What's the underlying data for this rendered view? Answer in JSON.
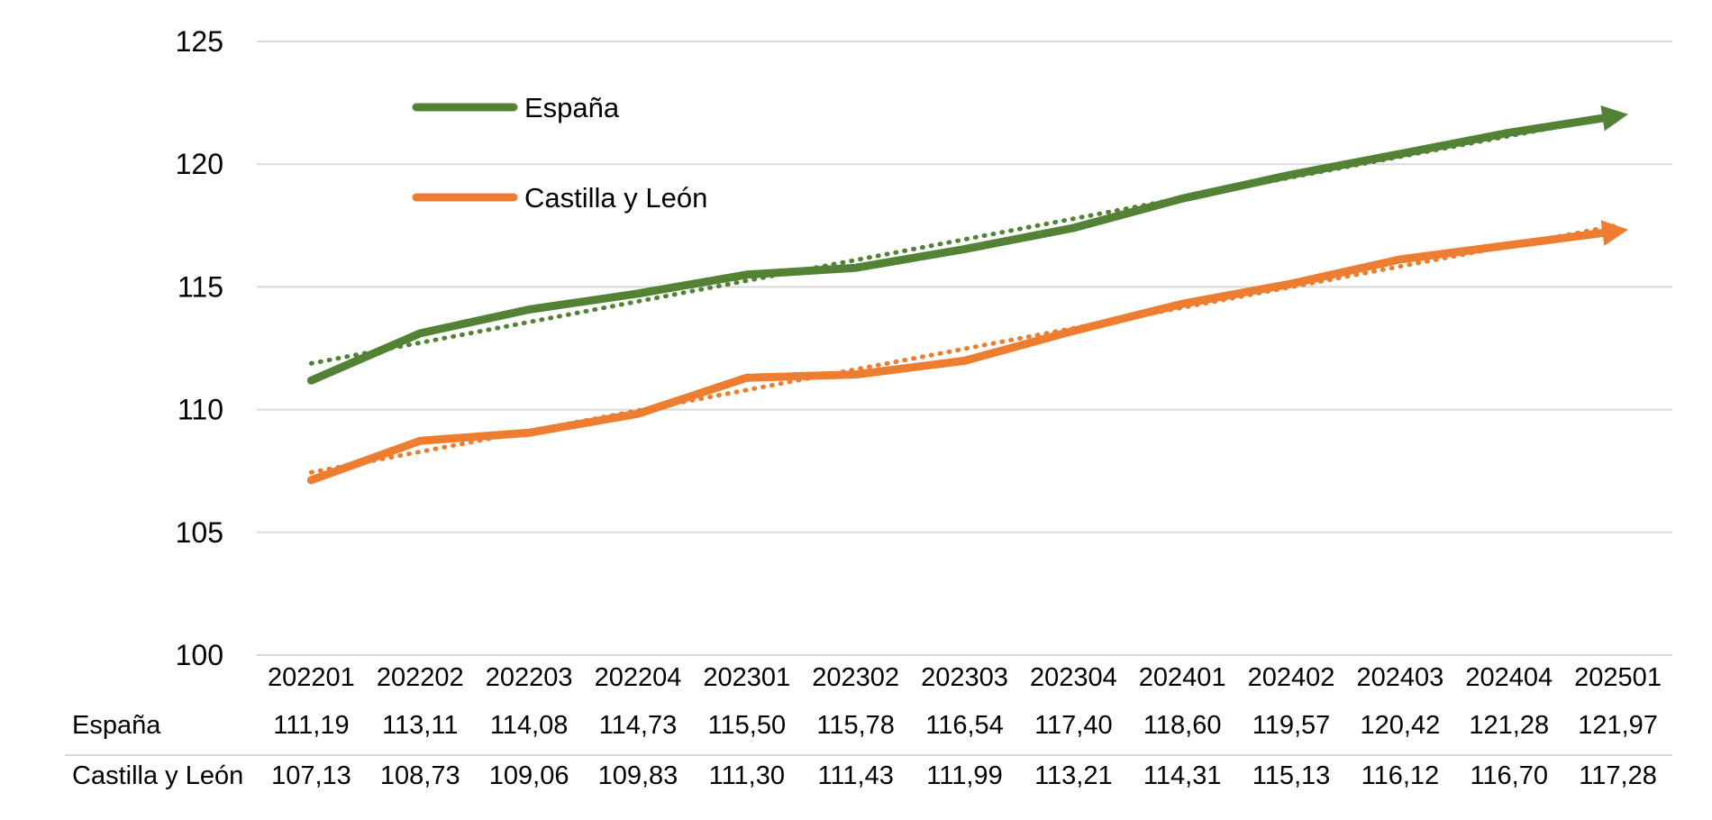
{
  "chart_data": {
    "type": "line",
    "categories": [
      "202201",
      "202202",
      "202203",
      "202204",
      "202301",
      "202302",
      "202303",
      "202304",
      "202401",
      "202402",
      "202403",
      "202404",
      "202501"
    ],
    "series": [
      {
        "name": "España",
        "color": "#548235",
        "values": [
          111.19,
          113.11,
          114.08,
          114.73,
          115.5,
          115.78,
          116.54,
          117.4,
          118.6,
          119.57,
          120.42,
          121.28,
          121.97
        ],
        "labels": [
          "111,19",
          "113,11",
          "114,08",
          "114,73",
          "115,50",
          "115,78",
          "116,54",
          "117,40",
          "118,60",
          "119,57",
          "120,42",
          "121,28",
          "121,97"
        ],
        "trendline": "linear"
      },
      {
        "name": "Castilla y León",
        "color": "#ED7D31",
        "values": [
          107.13,
          108.73,
          109.06,
          109.83,
          111.3,
          111.43,
          111.99,
          113.21,
          114.31,
          115.13,
          116.12,
          116.7,
          117.28
        ],
        "labels": [
          "107,13",
          "108,73",
          "109,06",
          "109,83",
          "111,30",
          "111,43",
          "111,99",
          "113,21",
          "114,31",
          "115,13",
          "116,12",
          "116,70",
          "117,28"
        ],
        "trendline": "linear"
      }
    ],
    "ylim": [
      100,
      125
    ],
    "yticks": [
      100,
      105,
      110,
      115,
      120,
      125
    ],
    "grid": true,
    "legend": "top-left",
    "data_table": true
  }
}
